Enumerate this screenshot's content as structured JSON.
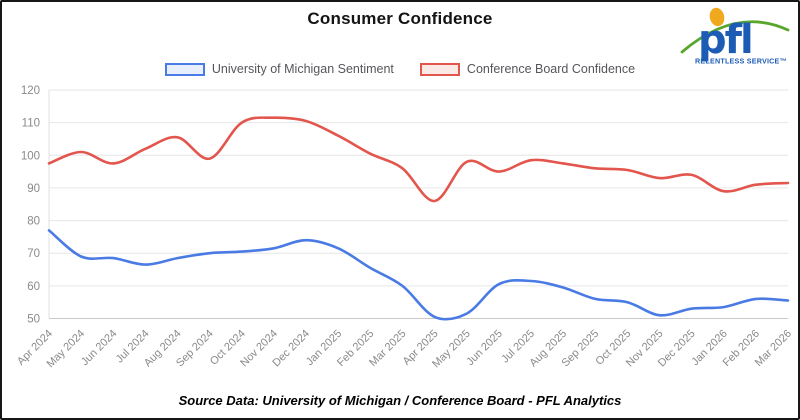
{
  "title": "Consumer Confidence",
  "logo": {
    "text": "pfl",
    "tagline": "RELENTLESS SERVICE",
    "trademark": "™",
    "text_color": "#1d5cb4",
    "arc_color": "#58a62c",
    "dot_color": "#f0a81f"
  },
  "footer": {
    "source_text": "Source Data: University of Michigan / Conference Board - PFL Analytics"
  },
  "axis_style": {
    "tick_color": "#8a8a8a",
    "grid_color": "#e6e6e6",
    "axis_line_color": "#c9c9c9",
    "left_axis_color": "#e0e0e0"
  },
  "chart_data": {
    "type": "line",
    "title": "Consumer Confidence",
    "categories": [
      "Apr 2024",
      "May 2024",
      "Jun 2024",
      "Jul 2024",
      "Aug 2024",
      "Sep 2024",
      "Oct 2024",
      "Nov 2024",
      "Dec 2024",
      "Jan 2025",
      "Feb 2025",
      "Mar 2025",
      "Apr 2025",
      "May 2025",
      "Jun 2025",
      "Jul 2025",
      "Aug 2025",
      "Sep 2025",
      "Oct 2025",
      "Nov 2025",
      "Dec 2025",
      "Jan 2026",
      "Feb 2026",
      "Mar 2026"
    ],
    "series": [
      {
        "name": "University of Michigan Sentiment",
        "color": "#4a7be4",
        "legend_fill": "#e7eefc",
        "values": [
          77,
          69,
          68.5,
          66.5,
          68.5,
          70,
          70.5,
          71.5,
          74,
          71.5,
          65.5,
          60,
          50.5,
          51.5,
          60.5,
          61.5,
          59.5,
          56,
          55,
          51,
          53,
          53.5,
          56,
          55.5
        ]
      },
      {
        "name": "Conference Board Confidence",
        "color": "#e2564d",
        "legend_fill": "#fbe9e6",
        "values": [
          97.5,
          101,
          97.5,
          102,
          105.5,
          99,
          110,
          111.5,
          110.5,
          106,
          100.5,
          96,
          86,
          98,
          95,
          98.5,
          97.5,
          96,
          95.5,
          93,
          94,
          89,
          91,
          91.5
        ]
      }
    ],
    "ylim": [
      50,
      120
    ],
    "yticks": [
      50,
      60,
      70,
      80,
      90,
      100,
      110,
      120
    ],
    "grid": true,
    "legend_position": "top",
    "x_label_rotation": -45
  }
}
